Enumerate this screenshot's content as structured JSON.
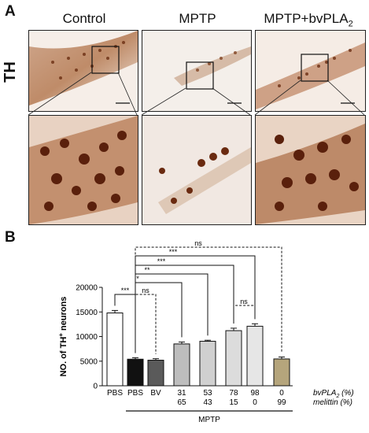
{
  "panel_a": {
    "letter": "A",
    "row_label": "TH",
    "columns": [
      {
        "label_main": "Control",
        "label_sub": "",
        "label_tail": ""
      },
      {
        "label_main": "MPTP",
        "label_sub": "",
        "label_tail": ""
      },
      {
        "label_main": "MPTP+bvPLA",
        "label_sub": "2",
        "label_tail": ""
      }
    ]
  },
  "panel_b": {
    "letter": "B",
    "ylabel_pre": "NO. of TH",
    "ylabel_sup": "+",
    "ylabel_post": " neurons",
    "row1_label_main": "bvPLA",
    "row1_label_sub": "2",
    "row1_label_tail": " (%)",
    "row2_label": "melittin (%)",
    "group_label": "MPTP"
  },
  "chart_data": {
    "type": "bar",
    "categories": [
      "PBS",
      "PBS",
      "BV",
      "31/65",
      "53/43",
      "78/15",
      "98/0",
      "0/99"
    ],
    "x_tick_row1": [
      "PBS",
      "PBS",
      "BV",
      "31",
      "53",
      "78",
      "98",
      "0"
    ],
    "x_tick_row2": [
      "",
      "",
      "",
      "65",
      "43",
      "15",
      "0",
      "99"
    ],
    "values": [
      14800,
      5400,
      5200,
      8500,
      9050,
      11200,
      12100,
      5450
    ],
    "errors": [
      500,
      300,
      300,
      400,
      200,
      500,
      500,
      400
    ],
    "bar_colors": [
      "#ffffff",
      "#111111",
      "#5a5a5a",
      "#bdbdbd",
      "#d0d0d0",
      "#dcdcdc",
      "#e6e6e6",
      "#b5a57c"
    ],
    "ylim": [
      0,
      20000
    ],
    "yticks": [
      "0",
      "5000",
      "10000",
      "15000",
      "20000"
    ],
    "significance": [
      {
        "from": 0,
        "to": 1,
        "label": "***"
      },
      {
        "from": 1,
        "to": 2,
        "label": "ns"
      },
      {
        "from": 1,
        "to": 3,
        "label": "*"
      },
      {
        "from": 1,
        "to": 4,
        "label": "**"
      },
      {
        "from": 1,
        "to": 5,
        "label": "***"
      },
      {
        "from": 1,
        "to": 6,
        "label": "***"
      },
      {
        "from": 1,
        "to": 7,
        "label": "ns"
      },
      {
        "from": 5,
        "to": 6,
        "label": "ns"
      }
    ]
  }
}
